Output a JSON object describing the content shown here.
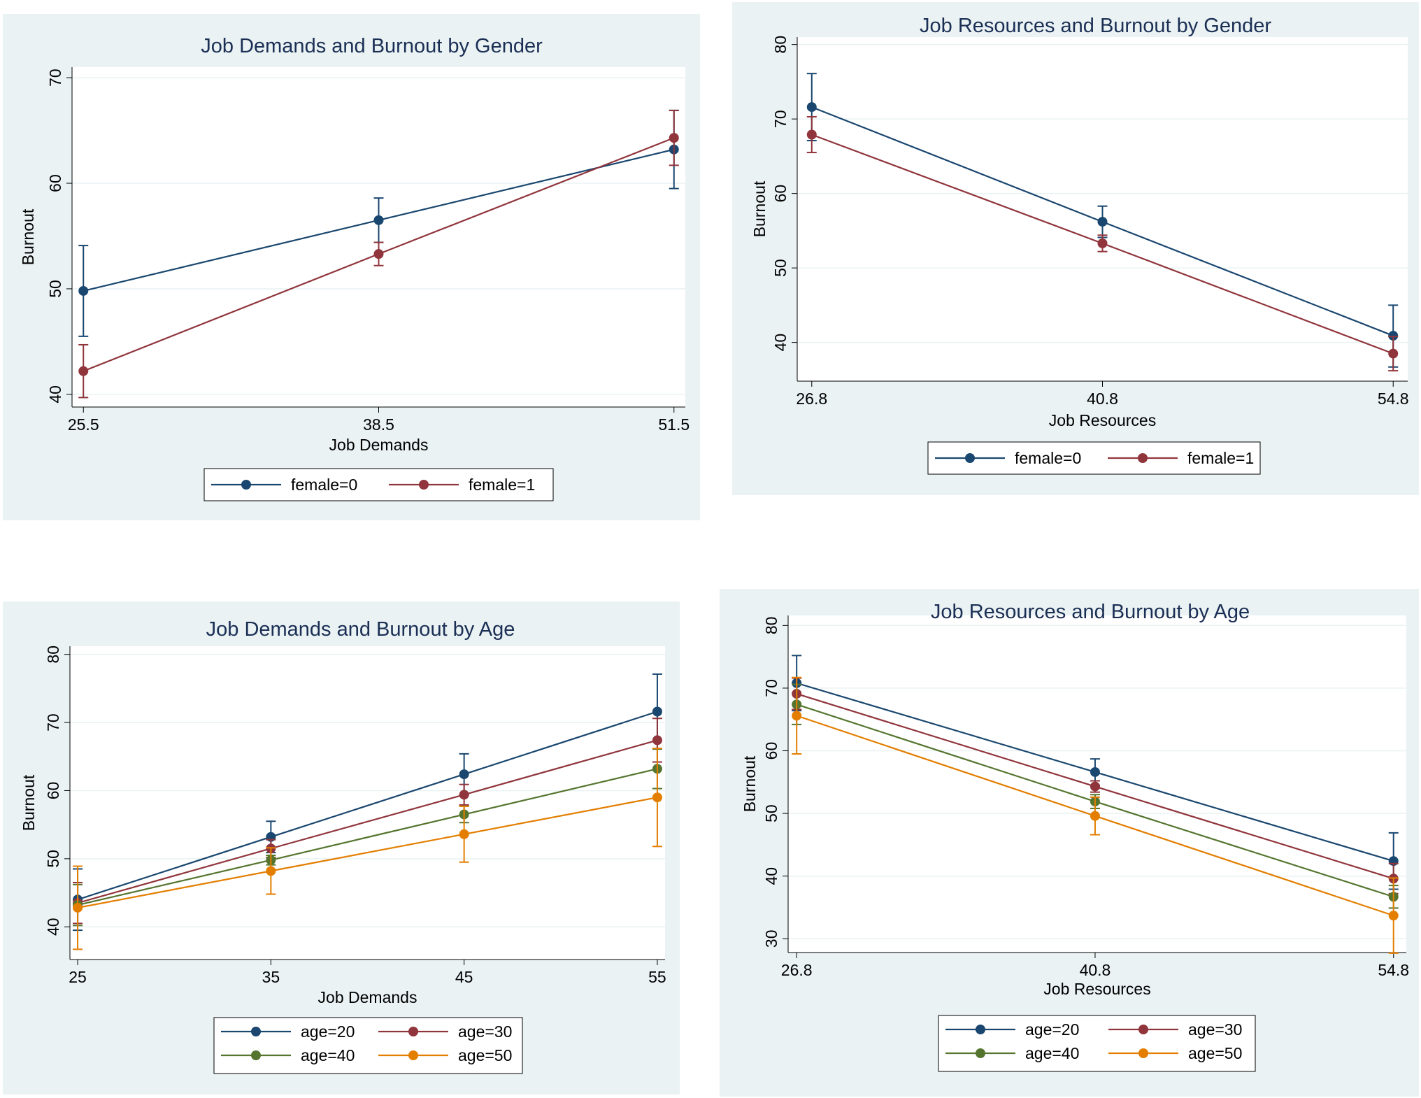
{
  "chart_data": [
    {
      "type": "line",
      "title": "Job Demands and Burnout by Gender",
      "xlabel": "Job Demands",
      "ylabel": "Burnout",
      "x": [
        25.5,
        38.5,
        51.5
      ],
      "xticks": [
        "25.5",
        "38.5",
        "51.5"
      ],
      "xlim": [
        25,
        52
      ],
      "ylim": [
        38.8,
        71
      ],
      "yticks": [
        40,
        50,
        60,
        70
      ],
      "grid": true,
      "series": [
        {
          "name": "female=0",
          "color": "#1a476f",
          "values": [
            49.8,
            56.5,
            63.2
          ],
          "ci_low": [
            45.5,
            54.4,
            59.5
          ],
          "ci_high": [
            54.1,
            58.6,
            66.9
          ]
        },
        {
          "name": "female=1",
          "color": "#90353b",
          "values": [
            42.2,
            53.3,
            64.3
          ],
          "ci_low": [
            39.7,
            52.2,
            61.7
          ],
          "ci_high": [
            44.7,
            54.4,
            66.9
          ]
        }
      ]
    },
    {
      "type": "line",
      "title": "Job Resources and Burnout by Gender",
      "xlabel": "Job Resources",
      "ylabel": "Burnout",
      "x": [
        26.8,
        40.8,
        54.8
      ],
      "xticks": [
        "26.8",
        "40.8",
        "54.8"
      ],
      "xlim": [
        26.1,
        55.5
      ],
      "ylim": [
        34.8,
        81
      ],
      "yticks": [
        40,
        50,
        60,
        70,
        80
      ],
      "grid": true,
      "series": [
        {
          "name": "female=0",
          "color": "#1a476f",
          "values": [
            71.6,
            56.2,
            40.9
          ],
          "ci_low": [
            67.1,
            54.1,
            36.7
          ],
          "ci_high": [
            76.1,
            58.3,
            45.0
          ]
        },
        {
          "name": "female=1",
          "color": "#90353b",
          "values": [
            67.9,
            53.3,
            38.5
          ],
          "ci_low": [
            65.5,
            52.2,
            36.2
          ],
          "ci_high": [
            70.3,
            54.4,
            40.8
          ]
        }
      ]
    },
    {
      "type": "line",
      "title": "Job Demands and Burnout by Age",
      "xlabel": "Job Demands",
      "ylabel": "Burnout",
      "x": [
        25,
        35,
        45,
        55
      ],
      "xticks": [
        "25",
        "35",
        "45",
        "55"
      ],
      "xlim": [
        24.6,
        55.4
      ],
      "ylim": [
        35.2,
        81.2
      ],
      "yticks": [
        40,
        50,
        60,
        70,
        80
      ],
      "grid": true,
      "series": [
        {
          "name": "age=20",
          "color": "#1a476f",
          "values": [
            44.0,
            53.2,
            62.4,
            71.6
          ],
          "ci_low": [
            39.5,
            50.9,
            59.4,
            66.1
          ],
          "ci_high": [
            48.5,
            55.5,
            65.4,
            77.1
          ]
        },
        {
          "name": "age=30",
          "color": "#90353b",
          "values": [
            43.5,
            51.5,
            59.4,
            67.4
          ],
          "ci_low": [
            40.5,
            50.2,
            57.9,
            64.2
          ],
          "ci_high": [
            46.5,
            52.8,
            60.9,
            70.6
          ]
        },
        {
          "name": "age=40",
          "color": "#55752f",
          "values": [
            43.2,
            49.8,
            56.5,
            63.2
          ],
          "ci_low": [
            40.2,
            49.1,
            55.3,
            60.3
          ],
          "ci_high": [
            46.2,
            50.5,
            57.7,
            66.1
          ]
        },
        {
          "name": "age=50",
          "color": "#e37e00",
          "values": [
            42.8,
            48.2,
            53.6,
            59.0
          ],
          "ci_low": [
            36.7,
            44.8,
            49.5,
            51.8
          ],
          "ci_high": [
            48.9,
            51.6,
            57.7,
            66.2
          ]
        }
      ]
    },
    {
      "type": "line",
      "title": "Job Resources and Burnout by Age",
      "xlabel": "Job Resources",
      "ylabel": "Burnout",
      "x": [
        26.8,
        40.8,
        54.8
      ],
      "xticks": [
        "26.8",
        "40.8",
        "54.8"
      ],
      "xlim": [
        26.4,
        55.4
      ],
      "ylim": [
        27.8,
        81.6
      ],
      "yticks": [
        30,
        40,
        50,
        60,
        70,
        80
      ],
      "grid": true,
      "series": [
        {
          "name": "age=20",
          "color": "#1a476f",
          "values": [
            70.8,
            56.6,
            42.4
          ],
          "ci_low": [
            66.4,
            54.5,
            37.9
          ],
          "ci_high": [
            75.2,
            58.7,
            46.9
          ]
        },
        {
          "name": "age=30",
          "color": "#90353b",
          "values": [
            69.1,
            54.3,
            39.6
          ],
          "ci_low": [
            66.6,
            53.4,
            37.2
          ],
          "ci_high": [
            71.6,
            55.2,
            42.0
          ]
        },
        {
          "name": "age=40",
          "color": "#55752f",
          "values": [
            67.4,
            51.9,
            36.7
          ],
          "ci_low": [
            64.2,
            50.8,
            34.9
          ],
          "ci_high": [
            70.6,
            53.0,
            38.5
          ]
        },
        {
          "name": "age=50",
          "color": "#e37e00",
          "values": [
            65.6,
            49.6,
            33.7
          ],
          "ci_low": [
            59.5,
            46.6,
            27.7
          ],
          "ci_high": [
            71.7,
            52.6,
            39.7
          ]
        }
      ]
    }
  ]
}
